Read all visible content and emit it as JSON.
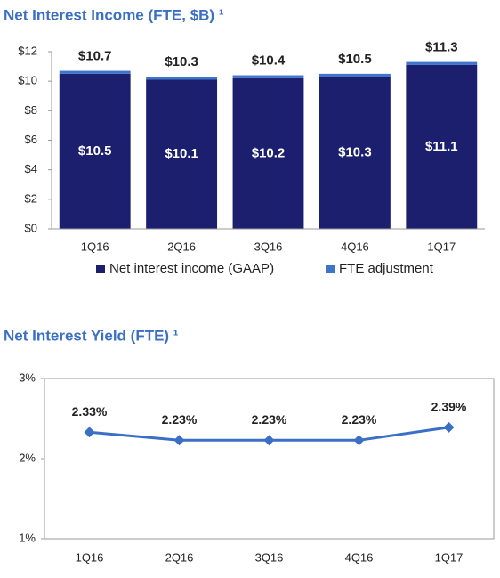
{
  "chart_data": [
    {
      "type": "stacked_bar",
      "title": "Net Interest Income (FTE, $B) ¹",
      "categories": [
        "1Q16",
        "2Q16",
        "3Q16",
        "4Q16",
        "1Q17"
      ],
      "series": [
        {
          "name": "Net interest income (GAAP)",
          "color": "#1b1f6e",
          "values": [
            10.5,
            10.1,
            10.2,
            10.3,
            11.1
          ],
          "value_labels": [
            "$10.5",
            "$10.1",
            "$10.2",
            "$10.3",
            "$11.1"
          ]
        },
        {
          "name": "FTE adjustment",
          "color": "#3f74c9",
          "values": [
            0.2,
            0.2,
            0.2,
            0.2,
            0.2
          ]
        }
      ],
      "totals": [
        10.7,
        10.3,
        10.4,
        10.5,
        11.3
      ],
      "total_labels": [
        "$10.7",
        "$10.3",
        "$10.4",
        "$10.5",
        "$11.3"
      ],
      "ylim": [
        0,
        12
      ],
      "yticks": [
        {
          "value": 0,
          "label": "$0"
        },
        {
          "value": 2,
          "label": "$2"
        },
        {
          "value": 4,
          "label": "$4"
        },
        {
          "value": 6,
          "label": "$6"
        },
        {
          "value": 8,
          "label": "$8"
        },
        {
          "value": 10,
          "label": "$10"
        },
        {
          "value": 12,
          "label": "$12"
        }
      ]
    },
    {
      "type": "line",
      "title": "Net Interest Yield (FTE) ¹",
      "categories": [
        "1Q16",
        "2Q16",
        "3Q16",
        "4Q16",
        "1Q17"
      ],
      "values": [
        2.33,
        2.23,
        2.23,
        2.23,
        2.39
      ],
      "value_labels": [
        "2.33%",
        "2.23%",
        "2.23%",
        "2.23%",
        "2.39%"
      ],
      "color": "#3b6fc6",
      "ylim": [
        1,
        3
      ],
      "yticks": [
        {
          "value": 1,
          "label": "1%"
        },
        {
          "value": 2,
          "label": "2%"
        },
        {
          "value": 3,
          "label": "3%"
        }
      ]
    }
  ]
}
